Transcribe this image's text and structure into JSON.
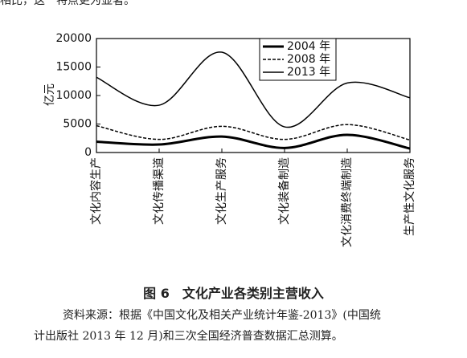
{
  "header_text": "相比，这一特点更为显著。",
  "chart_data": {
    "type": "line",
    "ylabel": "亿元",
    "categories": [
      "文化内容生产",
      "文化传播渠道",
      "文化生产服务",
      "文化装备制造",
      "文化消费终端制造",
      "生产性文化服务"
    ],
    "series": [
      {
        "name": "2004 年",
        "color": "#000000",
        "style": "thick",
        "values": [
          1900,
          1400,
          2800,
          800,
          3100,
          700
        ]
      },
      {
        "name": "2008 年",
        "color": "#000000",
        "style": "dashed",
        "values": [
          4700,
          2300,
          4600,
          2300,
          4900,
          2200
        ]
      },
      {
        "name": "2013 年",
        "color": "#000000",
        "style": "thin",
        "values": [
          13200,
          8300,
          17600,
          4500,
          12200,
          9600
        ]
      }
    ],
    "ylim": [
      0,
      20000
    ],
    "yticks": [
      0,
      5000,
      10000,
      15000,
      20000
    ],
    "legend": "upper right"
  },
  "caption": "图 6　文化产业各类别主营收入",
  "source_line1": "资料来源：根据《中国文化及相关产业统计年鉴-2013》(中国统",
  "source_line2": "计出版社 2013 年 12 月)和三次全国经济普查数据汇总测算。"
}
